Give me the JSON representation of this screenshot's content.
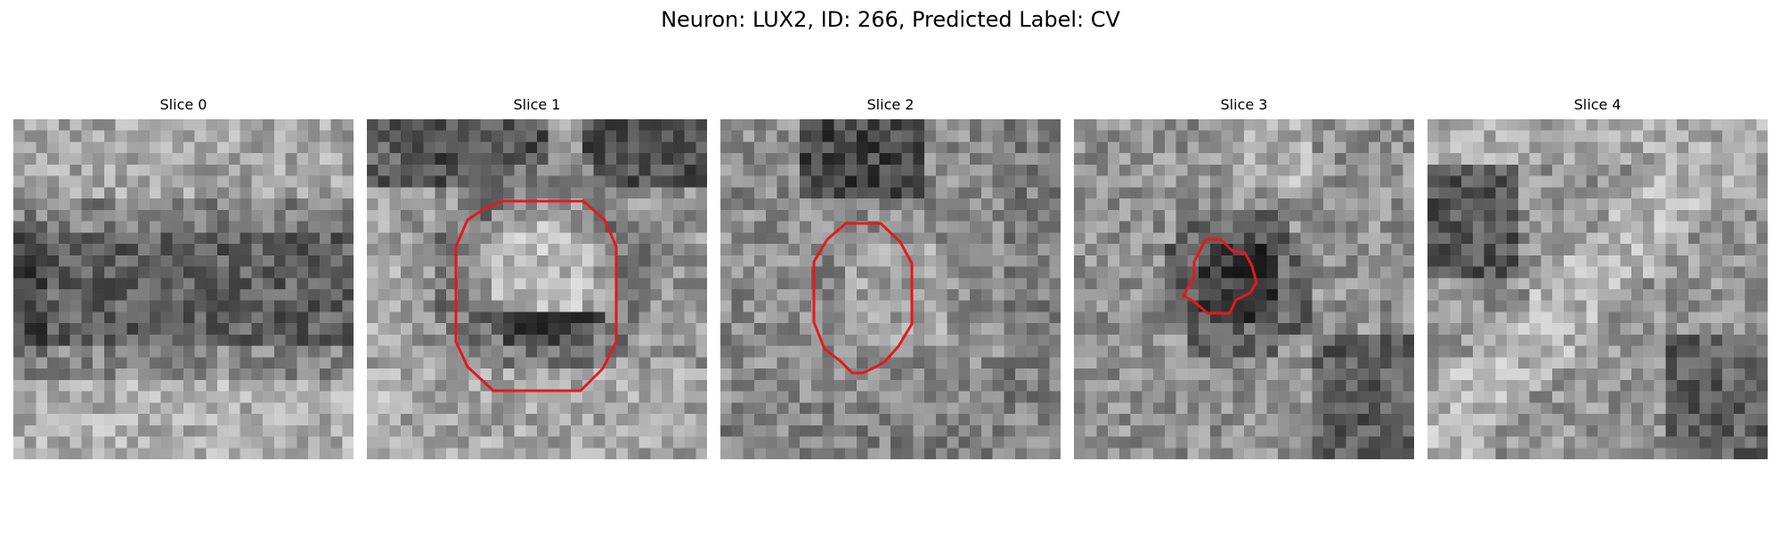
{
  "figure": {
    "title": "Neuron: LUX2, ID: 266, Predicted Label: CV"
  },
  "colors": {
    "contour": "#e31a1c",
    "background": "#ffffff"
  },
  "panels": [
    {
      "title": "Slice 0",
      "has_contour": false
    },
    {
      "title": "Slice 1",
      "has_contour": true
    },
    {
      "title": "Slice 2",
      "has_contour": true
    },
    {
      "title": "Slice 3",
      "has_contour": true
    },
    {
      "title": "Slice 4",
      "has_contour": false
    }
  ]
}
